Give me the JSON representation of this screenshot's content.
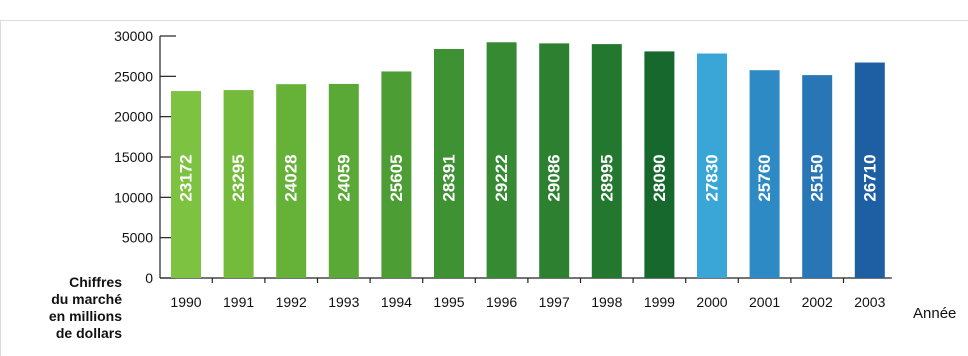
{
  "chart_data": {
    "type": "bar",
    "categories": [
      "1990",
      "1991",
      "1992",
      "1993",
      "1994",
      "1995",
      "1996",
      "1997",
      "1998",
      "1999",
      "2000",
      "2001",
      "2002",
      "2003"
    ],
    "values": [
      23172,
      23295,
      24028,
      24059,
      25605,
      28391,
      29222,
      29086,
      28995,
      28090,
      27830,
      25760,
      25150,
      26710
    ],
    "bar_colors": [
      "#7ec241",
      "#74bb3c",
      "#66b238",
      "#5aa936",
      "#4c9e34",
      "#3f9233",
      "#358a32",
      "#2c8030",
      "#23772e",
      "#16682c",
      "#3aa6d8",
      "#2e8ac4",
      "#2976b6",
      "#1e5fa3"
    ],
    "ylabel_lines": [
      "Chiffres",
      "du marché",
      "en millions",
      "de dollars"
    ],
    "xlabel": "Année",
    "ylim": [
      0,
      30000
    ],
    "yticks": [
      "30000",
      "25000",
      "20000",
      "15000",
      "10000",
      "5000",
      "0"
    ],
    "grid": false
  }
}
